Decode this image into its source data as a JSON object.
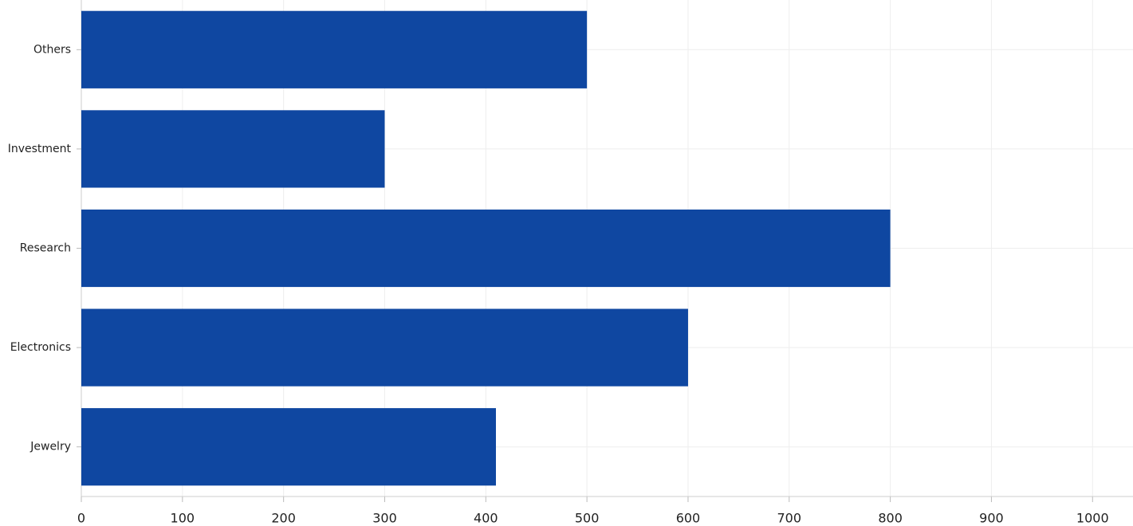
{
  "chart_data": {
    "type": "bar",
    "orientation": "horizontal",
    "categories": [
      "Jewelry",
      "Electronics",
      "Research",
      "Investment",
      "Others"
    ],
    "values": [
      410,
      600,
      800,
      300,
      500
    ],
    "color": "#0f47a1",
    "xlim": [
      0,
      1040
    ],
    "xticks": [
      0,
      100,
      200,
      300,
      400,
      500,
      600,
      700,
      800,
      900,
      1000
    ],
    "grid": true
  }
}
